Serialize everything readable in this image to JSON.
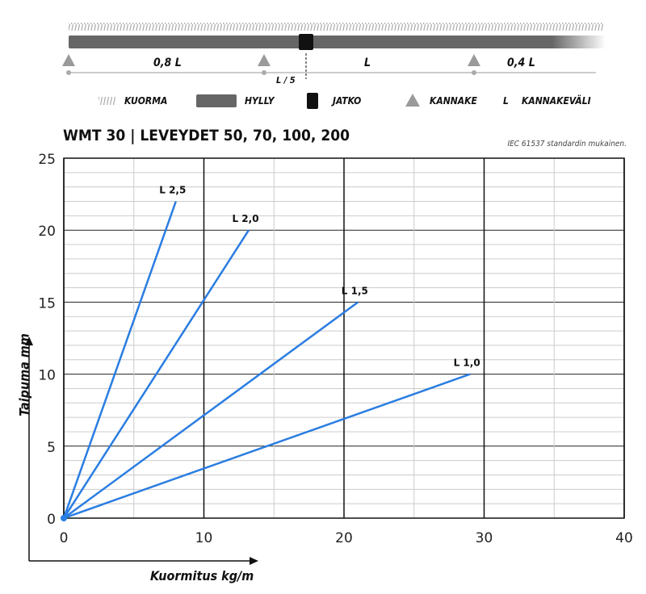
{
  "diagram": {
    "span_labels": [
      "0,8 L",
      "L",
      "0,4 L"
    ],
    "joint_offset_label": "L / 5",
    "legend": [
      {
        "icon": "load-hatch-icon",
        "label": "KUORMA"
      },
      {
        "icon": "shelf-bar-icon",
        "label": "HYLLY"
      },
      {
        "icon": "joint-square-icon",
        "label": "JATKO"
      },
      {
        "icon": "bracket-triangle-icon",
        "label": "KANNAKE"
      },
      {
        "icon": "L",
        "label": "KANNAKEVÄLI"
      }
    ],
    "colors": {
      "shelf": "#666666",
      "joint": "#111111",
      "bracket": "#9a9a9a"
    }
  },
  "chart_data": {
    "type": "line",
    "title": "WMT 30 | LEVEYDET 50, 70, 100, 200",
    "subtitle": "IEC 61537 standardin mukainen.",
    "xlabel": "Kuormitus kg/m",
    "ylabel": "Taipuma mm",
    "xlim": [
      0,
      40
    ],
    "ylim": [
      0,
      25
    ],
    "xticks": [
      0,
      10,
      20,
      30,
      40
    ],
    "yticks": [
      0,
      5,
      10,
      15,
      20,
      25
    ],
    "grid": true,
    "line_color": "#2a7de1",
    "series": [
      {
        "name": "L 2,5",
        "x": [
          0,
          8
        ],
        "y": [
          0,
          22
        ]
      },
      {
        "name": "L 2,0",
        "x": [
          0,
          13.2
        ],
        "y": [
          0,
          20
        ]
      },
      {
        "name": "L 1,5",
        "x": [
          0,
          21
        ],
        "y": [
          0,
          15
        ]
      },
      {
        "name": "L 1,0",
        "x": [
          0,
          29
        ],
        "y": [
          0,
          10
        ]
      }
    ]
  }
}
